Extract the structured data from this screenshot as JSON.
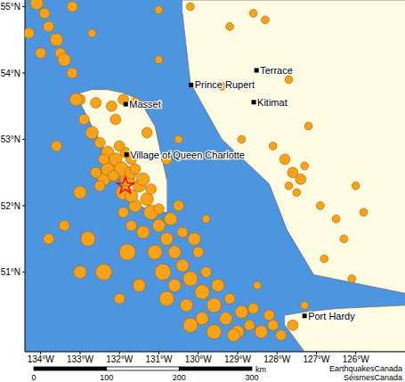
{
  "chart_data": {
    "type": "scatter",
    "xlim": [
      -134.4,
      -124.75
    ],
    "ylim": [
      49.8,
      55.1
    ],
    "xticks": [
      {
        "value": -134,
        "label": "134°W"
      },
      {
        "value": -133,
        "label": "133°W"
      },
      {
        "value": -132,
        "label": "132°W"
      },
      {
        "value": -131,
        "label": "131°W"
      },
      {
        "value": -130,
        "label": "130°W"
      },
      {
        "value": -129,
        "label": "129°W"
      },
      {
        "value": -128,
        "label": "128°W"
      },
      {
        "value": -127,
        "label": "127°W"
      },
      {
        "value": -126,
        "label": "126°W"
      }
    ],
    "yticks": [
      {
        "value": 51,
        "label": "51°N"
      },
      {
        "value": 52,
        "label": "52°N"
      },
      {
        "value": 53,
        "label": "53°N"
      },
      {
        "value": 54,
        "label": "54°N"
      },
      {
        "value": 55,
        "label": "55°N"
      }
    ],
    "earthquakes": {
      "color": "#f7a21b",
      "x": [
        -134.1,
        -133.9,
        -133.8,
        -133.6,
        -133.5,
        -133.4,
        -133.2,
        -133.0,
        -132.6,
        -132.2,
        -131.9,
        -131.6,
        -133.1,
        -132.9,
        -132.7,
        -132.5,
        -132.3,
        -132.2,
        -132.0,
        -131.8,
        -131.7,
        -132.4,
        -132.6,
        -131.5,
        -131.9,
        -131.3,
        -131.6,
        -131.9,
        -131.2,
        -131.0,
        -131.4,
        -131.7,
        -130.8,
        -131.1,
        -130.6,
        -130.9,
        -130.4,
        -130.2,
        -130.6,
        -129.9,
        -130.3,
        -129.6,
        -129.9,
        -129.3,
        -129.6,
        -129.0,
        -128.7,
        -128.9,
        -128.4,
        -128.1,
        -127.9,
        -130.0,
        -129.8,
        -132.8,
        -132.4,
        -133.4,
        -131.8,
        -130.5,
        -133.0,
        -132.1,
        -131.3,
        -130.8,
        -133.6,
        -134.3,
        -134.0,
        -133.2,
        -132.7,
        -131.0,
        -130.5,
        -129.8,
        -128.5,
        -127.3,
        -127.8,
        -127.6,
        -127.4,
        -127.7,
        -127.5,
        -127.3,
        -126.9,
        -126.3,
        -126.1,
        -126.5,
        -125.8,
        -126.0,
        -128.6,
        -129.2,
        -128.3,
        -127.7,
        -127.2,
        -128.1,
        -126.8,
        -129.4,
        -128.9,
        -131.0,
        -130.2,
        -132.1,
        -131.95,
        -132.3,
        -131.85,
        -132.15,
        -131.7,
        -132.4,
        -131.6,
        -132.0,
        -132.5,
        -131.4,
        -131.2,
        -131.7,
        -131.0,
        -130.7,
        -130.4,
        -130.1,
        -129.5,
        -129.2,
        -128.6,
        -128.2,
        -127.6,
        -130.2,
        -129.1,
        -130.8,
        -131.5,
        -132.0,
        -133.0,
        -133.8
      ],
      "y": [
        55.05,
        54.9,
        54.7,
        54.5,
        54.3,
        54.2,
        54.0,
        53.6,
        53.55,
        53.5,
        53.6,
        53.55,
        53.6,
        53.3,
        53.1,
        52.95,
        52.8,
        52.6,
        52.5,
        52.4,
        52.7,
        52.4,
        52.5,
        52.3,
        52.2,
        52.1,
        52.0,
        51.9,
        51.9,
        51.7,
        51.6,
        51.7,
        51.5,
        51.3,
        51.3,
        51.0,
        51.1,
        50.9,
        50.8,
        50.7,
        50.5,
        50.5,
        50.3,
        50.3,
        50.1,
        50.1,
        50.2,
        50.4,
        50.1,
        50.2,
        50.05,
        51.3,
        51.0,
        51.5,
        51.0,
        51.7,
        51.3,
        52.0,
        52.2,
        53.3,
        53.1,
        52.7,
        52.9,
        54.6,
        54.3,
        55.0,
        54.6,
        54.2,
        53.0,
        51.8,
        50.8,
        50.5,
        52.7,
        52.5,
        52.4,
        52.3,
        52.2,
        52.6,
        52.0,
        51.5,
        50.9,
        51.8,
        51.9,
        52.3,
        54.9,
        54.7,
        54.8,
        53.9,
        53.2,
        52.9,
        51.2,
        53.8,
        53.0,
        54.95,
        55.0,
        52.7,
        52.55,
        52.55,
        52.8,
        52.45,
        52.5,
        52.7,
        52.55,
        52.9,
        52.3,
        52.4,
        52.25,
        52.15,
        51.95,
        51.8,
        51.6,
        51.5,
        50.8,
        50.6,
        50.45,
        50.35,
        50.2,
        50.2,
        50.05,
        50.6,
        50.8,
        50.6,
        51.0,
        51.5
      ],
      "magnitude": [
        3,
        2,
        2,
        3,
        2,
        3,
        2,
        2,
        2,
        2,
        2,
        2,
        3,
        2,
        3,
        2,
        3,
        4,
        3,
        4,
        2,
        3,
        2,
        3,
        4,
        3,
        3,
        2,
        4,
        3,
        3,
        2,
        3,
        4,
        3,
        5,
        3,
        4,
        3,
        4,
        3,
        4,
        3,
        3,
        4,
        3,
        2,
        3,
        3,
        2,
        2,
        2,
        2,
        4,
        5,
        2,
        5,
        2,
        3,
        2,
        2,
        2,
        2,
        2,
        2,
        2,
        1,
        1,
        1,
        1,
        1,
        1,
        2,
        2,
        2,
        1,
        1,
        1,
        1,
        1,
        1,
        1,
        1,
        1,
        1,
        1,
        1,
        1,
        1,
        1,
        1,
        1,
        1,
        1,
        1,
        3,
        4,
        3,
        2,
        2,
        3,
        2,
        2,
        2,
        2,
        3,
        2,
        3,
        2,
        3,
        2,
        3,
        3,
        2,
        2,
        2,
        2,
        4,
        3,
        4,
        3,
        2,
        3,
        2
      ]
    },
    "main_event": {
      "x": -131.85,
      "y": 52.3,
      "color": "#ff0000",
      "marker": "star"
    },
    "places": [
      {
        "name": "Terrace",
        "x": -128.52,
        "y": 54.04
      },
      {
        "name": "Prince Rupert",
        "x": -130.18,
        "y": 53.82
      },
      {
        "name": "Kitimat",
        "x": -128.59,
        "y": 53.56
      },
      {
        "name": "Masset",
        "x": -131.84,
        "y": 53.53
      },
      {
        "name": "Village of Queen Charlotte",
        "x": -131.82,
        "y": 52.77
      },
      {
        "name": "Port Hardy",
        "x": -127.3,
        "y": 50.34
      }
    ],
    "land": [
      {
        "x": [
          -130.4,
          -130.2,
          -129.4,
          -128.2,
          -127.75,
          -127.07,
          -124.75
        ],
        "low": [
          54.9,
          53.85,
          53.0,
          52.33,
          51.64,
          50.96,
          50.68
        ],
        "high": [
          55.1,
          55.1,
          55.1,
          55.1,
          55.1,
          55.1,
          55.1
        ]
      },
      {
        "x": [
          -133.0,
          -132.7,
          -132.3,
          -131.9,
          -131.5,
          -131.1,
          -130.8
        ],
        "low": [
          53.55,
          53.2,
          52.75,
          52.3,
          52.0,
          51.9,
          51.9
        ],
        "high": [
          53.7,
          53.75,
          53.75,
          53.7,
          53.6,
          53.2,
          52.4
        ]
      },
      {
        "x": [
          -127.8,
          -127.3,
          -126.5,
          -124.75
        ],
        "low": [
          50.2,
          49.8,
          49.8,
          49.8
        ],
        "high": [
          50.35,
          50.4,
          50.45,
          50.5
        ]
      }
    ],
    "scale_bar": {
      "ticks": [
        0,
        100,
        200,
        300
      ],
      "unit": "km"
    },
    "credits": [
      "EarthquakesCanada",
      "SéismesCanada"
    ]
  }
}
